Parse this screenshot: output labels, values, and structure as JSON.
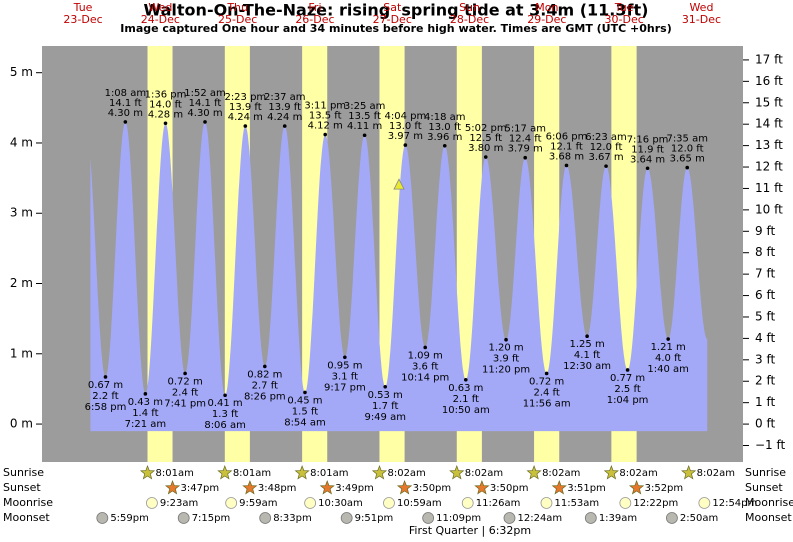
{
  "chart_data": {
    "type": "area",
    "title": "Walton-On-The-Naze: rising  spring tide at 3.4m (11.3ft)",
    "subtitle": "Image captured One hour and 34 minutes before high water. Times are GMT (UTC +0hrs)",
    "ylim": [
      -0.54,
      5.38
    ],
    "yticks": [
      {
        "value": 0,
        "label": "0 m"
      },
      {
        "value": 1,
        "label": "1 m"
      },
      {
        "value": 2,
        "label": "2 m"
      },
      {
        "value": 3,
        "label": "3 m"
      },
      {
        "value": 4,
        "label": "4 m"
      },
      {
        "value": 5,
        "label": "5 m"
      }
    ],
    "y2lim": [
      -1.77,
      17.65
    ],
    "y2ticks": [
      {
        "value": -1,
        "label": "−1 ft"
      },
      {
        "value": 0,
        "label": "0 ft"
      },
      {
        "value": 1,
        "label": "1 ft"
      },
      {
        "value": 2,
        "label": "2 ft"
      },
      {
        "value": 3,
        "label": "3 ft"
      },
      {
        "value": 4,
        "label": "4 ft"
      },
      {
        "value": 5,
        "label": "5 ft"
      },
      {
        "value": 6,
        "label": "6 ft"
      },
      {
        "value": 7,
        "label": "7 ft"
      },
      {
        "value": 8,
        "label": "8 ft"
      },
      {
        "value": 9,
        "label": "9 ft"
      },
      {
        "value": 10,
        "label": "10 ft"
      },
      {
        "value": 11,
        "label": "11 ft"
      },
      {
        "value": 12,
        "label": "12 ft"
      },
      {
        "value": 13,
        "label": "13 ft"
      },
      {
        "value": 14,
        "label": "14 ft"
      },
      {
        "value": 15,
        "label": "15 ft"
      },
      {
        "value": 16,
        "label": "16 ft"
      },
      {
        "value": 17,
        "label": "17 ft"
      }
    ],
    "now_height": 3.4,
    "water_color": "#a3a9f7",
    "background_color": "#9c9c9c",
    "daylight_color": "#ffffa6",
    "row_labels": {
      "sunrise": "Sunrise",
      "sunset": "Sunset",
      "moonrise": "Moonrise",
      "moonset": "Moonset"
    },
    "moon_phase": "First Quarter | 6:32pm",
    "days": [
      {
        "weekday": "Tue",
        "date": "23-Dec",
        "sunrise": null,
        "sunset": null,
        "moonrise": null,
        "moonset": "5:59pm",
        "tides": [
          {
            "time": "6:58 pm",
            "height": {
              "value": 0.67,
              "label": "0.67 m"
            },
            "feet": "2.2 ft"
          }
        ]
      },
      {
        "weekday": "Wed",
        "date": "24-Dec",
        "sunrise": "8:01am",
        "sunset": "3:47pm",
        "moonrise": "9:23am",
        "moonset": "7:15pm",
        "tides": [
          {
            "time": "1:08 am",
            "height": {
              "value": 4.3,
              "label": "4.30 m"
            },
            "feet": "14.1 ft"
          },
          {
            "time": "7:21 am",
            "height": {
              "value": 0.43,
              "label": "0.43 m"
            },
            "feet": "1.4 ft"
          },
          {
            "time": "1:36 pm",
            "height": {
              "value": 4.28,
              "label": "4.28 m"
            },
            "feet": "14.0 ft"
          },
          {
            "time": "7:41 pm",
            "height": {
              "value": 0.72,
              "label": "0.72 m"
            },
            "feet": "2.4 ft"
          }
        ]
      },
      {
        "weekday": "Thu",
        "date": "25-Dec",
        "sunrise": "8:01am",
        "sunset": "3:48pm",
        "moonrise": "9:59am",
        "moonset": "8:33pm",
        "tides": [
          {
            "time": "1:52 am",
            "height": {
              "value": 4.3,
              "label": "4.30 m"
            },
            "feet": "14.1 ft"
          },
          {
            "time": "8:06 am",
            "height": {
              "value": 0.41,
              "label": "0.41 m"
            },
            "feet": "1.3 ft"
          },
          {
            "time": "2:23 pm",
            "height": {
              "value": 4.24,
              "label": "4.24 m"
            },
            "feet": "13.9 ft"
          },
          {
            "time": "8:26 pm",
            "height": {
              "value": 0.82,
              "label": "0.82 m"
            },
            "feet": "2.7 ft"
          }
        ]
      },
      {
        "weekday": "Fri",
        "date": "26-Dec",
        "sunrise": "8:01am",
        "sunset": "3:49pm",
        "moonrise": "10:30am",
        "moonset": "9:51pm",
        "tides": [
          {
            "time": "2:37 am",
            "height": {
              "value": 4.24,
              "label": "4.24 m"
            },
            "feet": "13.9 ft"
          },
          {
            "time": "8:54 am",
            "height": {
              "value": 0.45,
              "label": "0.45 m"
            },
            "feet": "1.5 ft"
          },
          {
            "time": "3:11 pm",
            "height": {
              "value": 4.12,
              "label": "4.12 m"
            },
            "feet": "13.5 ft"
          },
          {
            "time": "9:17 pm",
            "height": {
              "value": 0.95,
              "label": "0.95 m"
            },
            "feet": "3.1 ft"
          }
        ]
      },
      {
        "weekday": "Sat",
        "date": "27-Dec",
        "sunrise": "8:02am",
        "sunset": "3:50pm",
        "moonrise": "10:59am",
        "moonset": "11:09pm",
        "tides": [
          {
            "time": "3:25 am",
            "height": {
              "value": 4.11,
              "label": "4.11 m"
            },
            "feet": "13.5 ft"
          },
          {
            "time": "9:49 am",
            "height": {
              "value": 0.53,
              "label": "0.53 m"
            },
            "feet": "1.7 ft"
          },
          {
            "time": "4:04 pm",
            "height": {
              "value": 3.97,
              "label": "3.97 m"
            },
            "feet": "13.0 ft"
          },
          {
            "time": "10:14 pm",
            "height": {
              "value": 1.09,
              "label": "1.09 m"
            },
            "feet": "3.6 ft"
          }
        ]
      },
      {
        "weekday": "Sun",
        "date": "28-Dec",
        "sunrise": "8:02am",
        "sunset": "3:50pm",
        "moonrise": "11:26am",
        "moonset": null,
        "tides": [
          {
            "time": "4:18 am",
            "height": {
              "value": 3.96,
              "label": "3.96 m"
            },
            "feet": "13.0 ft"
          },
          {
            "time": "10:50 am",
            "height": {
              "value": 0.63,
              "label": "0.63 m"
            },
            "feet": "2.1 ft"
          },
          {
            "time": "5:02 pm",
            "height": {
              "value": 3.8,
              "label": "3.80 m"
            },
            "feet": "12.5 ft"
          },
          {
            "time": "11:20 pm",
            "height": {
              "value": 1.2,
              "label": "1.20 m"
            },
            "feet": "3.9 ft"
          }
        ]
      },
      {
        "weekday": "Mon",
        "date": "29-Dec",
        "sunrise": "8:02am",
        "sunset": "3:51pm",
        "moonrise": "11:53am",
        "moonset": "12:24am",
        "tides": [
          {
            "time": "5:17 am",
            "height": {
              "value": 3.79,
              "label": "3.79 m"
            },
            "feet": "12.4 ft"
          },
          {
            "time": "11:56 am",
            "height": {
              "value": 0.72,
              "label": "0.72 m"
            },
            "feet": "2.4 ft"
          },
          {
            "time": "6:06 pm",
            "height": {
              "value": 3.68,
              "label": "3.68 m"
            },
            "feet": "12.1 ft"
          }
        ]
      },
      {
        "weekday": "Tue",
        "date": "30-Dec",
        "sunrise": "8:02am",
        "sunset": "3:52pm",
        "moonrise": "12:22pm",
        "moonset": "1:39am",
        "tides": [
          {
            "time": "12:30 am",
            "height": {
              "value": 1.25,
              "label": "1.25 m"
            },
            "feet": "4.1 ft"
          },
          {
            "time": "6:23 am",
            "height": {
              "value": 3.67,
              "label": "3.67 m"
            },
            "feet": "12.0 ft"
          },
          {
            "time": "1:04 pm",
            "height": {
              "value": 0.77,
              "label": "0.77 m"
            },
            "feet": "2.5 ft"
          },
          {
            "time": "7:16 pm",
            "height": {
              "value": 3.64,
              "label": "3.64 m"
            },
            "feet": "11.9 ft"
          }
        ]
      },
      {
        "weekday": "Wed",
        "date": "31-Dec",
        "sunrise": "8:02am",
        "sunset": null,
        "moonrise": "12:54pm",
        "moonset": "2:50am",
        "tides": [
          {
            "time": "1:40 am",
            "height": {
              "value": 1.21,
              "label": "1.21 m"
            },
            "feet": "4.0 ft"
          },
          {
            "time": "7:35 am",
            "height": {
              "value": 3.65,
              "label": "3.65 m"
            },
            "feet": "12.0 ft"
          }
        ]
      }
    ]
  }
}
